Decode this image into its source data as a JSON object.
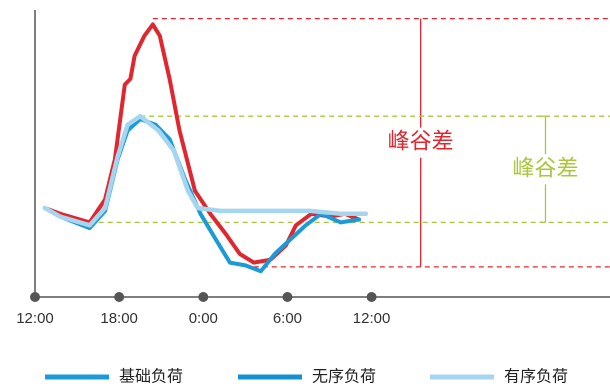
{
  "chart_data": {
    "type": "line",
    "xlim": [
      12,
      53
    ],
    "ylim": [
      0,
      100
    ],
    "xticks": [
      {
        "value": 12,
        "label": "12:00"
      },
      {
        "value": 18,
        "label": "18:00"
      },
      {
        "value": 24,
        "label": "0:00"
      },
      {
        "value": 30,
        "label": "6:00"
      },
      {
        "value": 36,
        "label": "12:00"
      }
    ],
    "series": [
      {
        "name": "基础负荷",
        "color": "#1b9ad7",
        "x": [
          12.7,
          13.8,
          15.9,
          17,
          17.9,
          18.6,
          19.5,
          20.6,
          21.6,
          22.7,
          23.8,
          24.9,
          25.9,
          27,
          28.1,
          29.1,
          30.2,
          31.3,
          32.4,
          33.8,
          35.1
        ],
        "values": [
          31,
          28,
          24,
          30,
          48,
          58,
          62,
          60,
          55,
          41,
          29,
          20,
          12,
          11,
          9,
          15,
          20,
          25,
          29,
          26,
          27
        ]
      },
      {
        "name": "无序负荷",
        "color": "#e0262e",
        "legend_color": "#1590d2",
        "x": [
          12.7,
          13.8,
          15.9,
          17,
          17.7,
          18.4,
          18.8,
          19.1,
          19.8,
          20.4,
          20.9,
          21.6,
          22.3,
          23.4,
          24.5,
          25.6,
          26.6,
          27.6,
          28.8,
          29.9,
          30.6,
          31.7,
          33.1,
          34.1,
          35.1
        ],
        "values": [
          31,
          29,
          26,
          34,
          48,
          74,
          76,
          84,
          91,
          95,
          91,
          76,
          58,
          37,
          29,
          22,
          15,
          12,
          13,
          18,
          25,
          29,
          28,
          29,
          27
        ]
      },
      {
        "name": "有序负荷",
        "color": "#a6d6ef",
        "x": [
          12.7,
          13.8,
          15.9,
          17,
          17.9,
          18.6,
          19.5,
          20.8,
          21.9,
          22.9,
          23.6,
          25.2,
          27.4,
          29.5,
          31.6,
          33.8,
          35.6
        ],
        "values": [
          31,
          28,
          25,
          31,
          49,
          60,
          63,
          58,
          51,
          37,
          31,
          30,
          30,
          30,
          30,
          29,
          29
        ]
      }
    ],
    "annotations": [
      {
        "text": "峰谷差",
        "color": "#e0262e",
        "series": 1,
        "high": 97,
        "low": 10.5,
        "x": 39.5
      },
      {
        "text": "峰谷差",
        "color": "#a8c83c",
        "series": 2,
        "high": 63,
        "low": 26,
        "x": 48.4
      }
    ]
  }
}
